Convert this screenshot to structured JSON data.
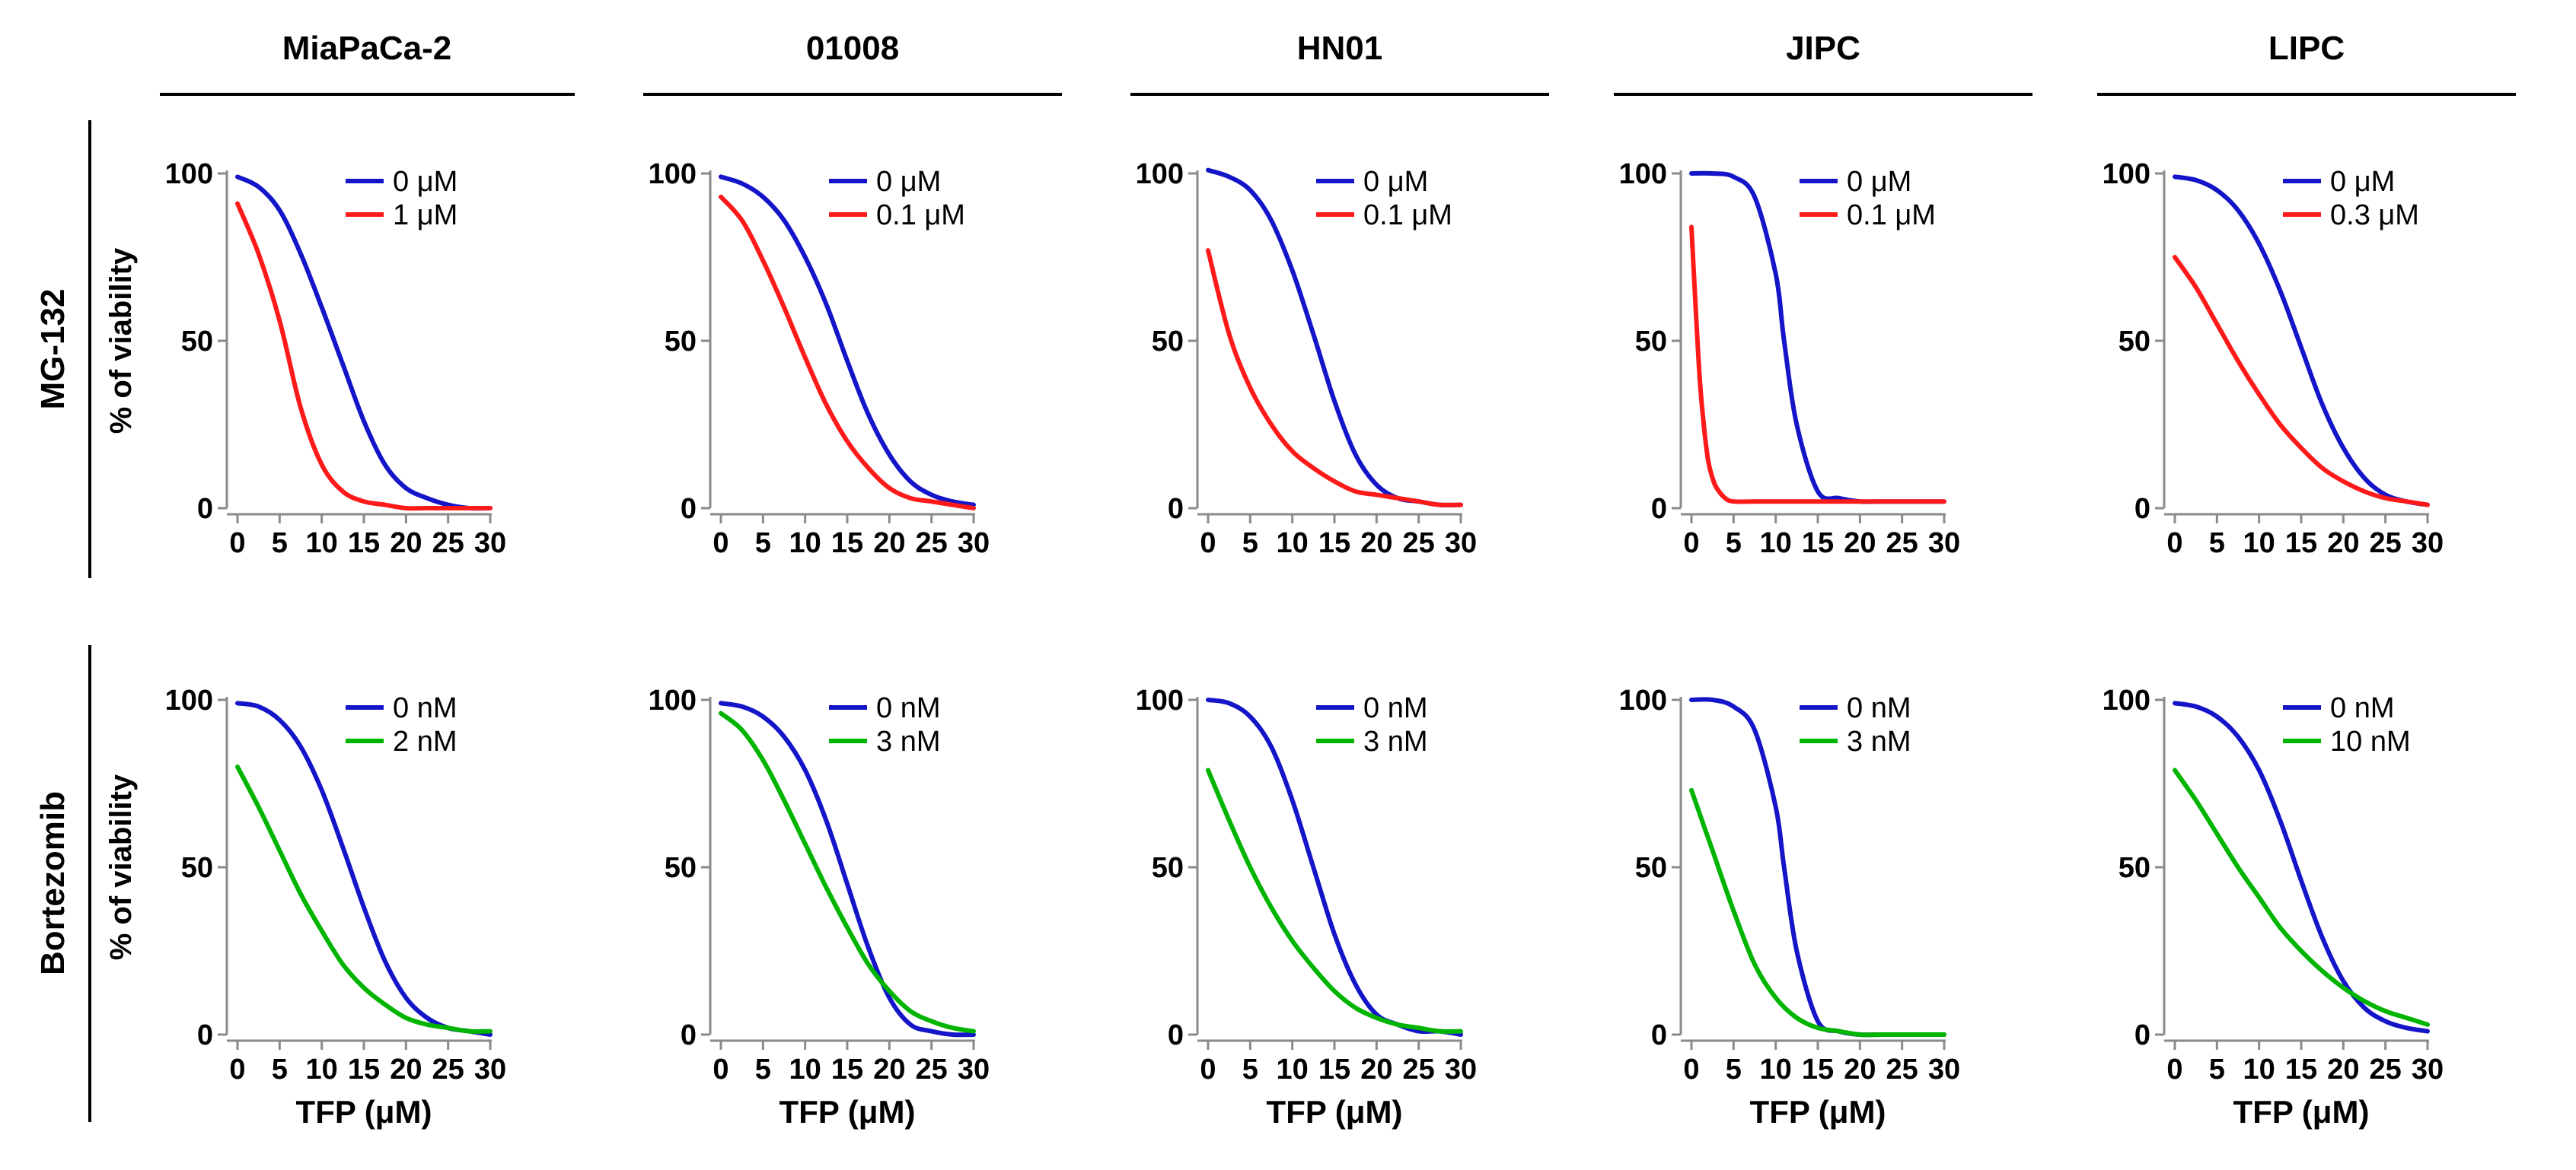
{
  "figure": {
    "columns": [
      "MiaPaCa-2",
      "01008",
      "HN01",
      "JIPC",
      "LIPC"
    ],
    "rows": [
      "MG-132",
      "Bortezomib"
    ],
    "colors": {
      "control": "#1414c8",
      "mg132": "#ff1a1a",
      "bortezomib": "#00b400"
    }
  },
  "chart_data": [
    {
      "type": "line",
      "row": "MG-132",
      "column": "MiaPaCa-2",
      "xlabel": "",
      "ylabel": "% of viability",
      "xlim": [
        0,
        30
      ],
      "ylim": [
        0,
        100
      ],
      "xticks": [
        0,
        5,
        10,
        15,
        20,
        25,
        30
      ],
      "yticks": [
        0,
        50,
        100
      ],
      "series": [
        {
          "name": "0 μM",
          "color": "#1414c8",
          "x": [
            0,
            2.5,
            5,
            7.5,
            10,
            12.5,
            15,
            17.5,
            20,
            22.5,
            25,
            27.5,
            30
          ],
          "y": [
            99,
            96,
            89,
            76,
            60,
            43,
            26,
            13,
            6,
            3,
            1,
            0,
            0
          ]
        },
        {
          "name": "1 μM",
          "color": "#ff1a1a",
          "x": [
            0,
            2.5,
            5,
            7.5,
            10,
            12.5,
            15,
            17.5,
            20,
            22.5,
            25,
            27.5,
            30
          ],
          "y": [
            91,
            76,
            56,
            30,
            13,
            5,
            2,
            1,
            0,
            0,
            0,
            0,
            0
          ]
        }
      ]
    },
    {
      "type": "line",
      "row": "MG-132",
      "column": "01008",
      "xlabel": "",
      "ylabel": "",
      "xlim": [
        0,
        30
      ],
      "ylim": [
        0,
        100
      ],
      "xticks": [
        0,
        5,
        10,
        15,
        20,
        25,
        30
      ],
      "yticks": [
        0,
        50,
        100
      ],
      "series": [
        {
          "name": "0 μM",
          "color": "#1414c8",
          "x": [
            0,
            2.5,
            5,
            7.5,
            10,
            12.5,
            15,
            17.5,
            20,
            22.5,
            25,
            27.5,
            30
          ],
          "y": [
            99,
            97,
            93,
            86,
            75,
            61,
            44,
            28,
            16,
            8,
            4,
            2,
            1
          ]
        },
        {
          "name": "0.1 μM",
          "color": "#ff1a1a",
          "x": [
            0,
            2.5,
            5,
            7.5,
            10,
            12.5,
            15,
            17.5,
            20,
            22.5,
            25,
            27.5,
            30
          ],
          "y": [
            93,
            86,
            74,
            60,
            45,
            31,
            20,
            12,
            6,
            3,
            2,
            1,
            0
          ]
        }
      ]
    },
    {
      "type": "line",
      "row": "MG-132",
      "column": "HN01",
      "xlabel": "",
      "ylabel": "",
      "xlim": [
        0,
        30
      ],
      "ylim": [
        0,
        100
      ],
      "xticks": [
        0,
        5,
        10,
        15,
        20,
        25,
        30
      ],
      "yticks": [
        0,
        50,
        100
      ],
      "series": [
        {
          "name": "0 μM",
          "color": "#1414c8",
          "x": [
            0,
            2.5,
            5,
            7.5,
            10,
            12.5,
            15,
            17.5,
            20,
            22.5,
            25,
            27.5,
            30
          ],
          "y": [
            101,
            99,
            95,
            86,
            71,
            52,
            32,
            16,
            7,
            3,
            2,
            1,
            1
          ]
        },
        {
          "name": "0.1 μM",
          "color": "#ff1a1a",
          "x": [
            0,
            2.5,
            5,
            7.5,
            10,
            12.5,
            15,
            17.5,
            20,
            22.5,
            25,
            27.5,
            30
          ],
          "y": [
            77,
            52,
            36,
            25,
            17,
            12,
            8,
            5,
            4,
            3,
            2,
            1,
            1
          ]
        }
      ]
    },
    {
      "type": "line",
      "row": "MG-132",
      "column": "JIPC",
      "xlabel": "",
      "ylabel": "",
      "xlim": [
        0,
        30
      ],
      "ylim": [
        0,
        100
      ],
      "xticks": [
        0,
        5,
        10,
        15,
        20,
        25,
        30
      ],
      "yticks": [
        0,
        50,
        100
      ],
      "series": [
        {
          "name": "0 μM",
          "color": "#1414c8",
          "x": [
            0,
            2.5,
            5,
            7.5,
            10,
            11,
            12.5,
            15,
            17.5,
            20,
            22.5,
            25,
            27.5,
            30
          ],
          "y": [
            100,
            100,
            99,
            93,
            70,
            50,
            25,
            5,
            3,
            2,
            2,
            2,
            2,
            2
          ]
        },
        {
          "name": "0.1 μM",
          "color": "#ff1a1a",
          "x": [
            0,
            0.5,
            1,
            1.5,
            2,
            2.5,
            3,
            4,
            5,
            7.5,
            10,
            15,
            20,
            25,
            30
          ],
          "y": [
            84,
            60,
            38,
            24,
            14,
            9,
            6,
            3,
            2,
            2,
            2,
            2,
            2,
            2,
            2
          ]
        }
      ]
    },
    {
      "type": "line",
      "row": "MG-132",
      "column": "LIPC",
      "xlabel": "",
      "ylabel": "",
      "xlim": [
        0,
        30
      ],
      "ylim": [
        0,
        100
      ],
      "xticks": [
        0,
        5,
        10,
        15,
        20,
        25,
        30
      ],
      "yticks": [
        0,
        50,
        100
      ],
      "series": [
        {
          "name": "0 μM",
          "color": "#1414c8",
          "x": [
            0,
            2.5,
            5,
            7.5,
            10,
            12.5,
            15,
            17.5,
            20,
            22.5,
            25,
            27.5,
            30
          ],
          "y": [
            99,
            98,
            95,
            89,
            79,
            65,
            48,
            31,
            18,
            9,
            4,
            2,
            1
          ]
        },
        {
          "name": "0.3 μM",
          "color": "#ff1a1a",
          "x": [
            0,
            2.5,
            5,
            7.5,
            10,
            12.5,
            15,
            17.5,
            20,
            22.5,
            25,
            27.5,
            30
          ],
          "y": [
            75,
            66,
            55,
            44,
            34,
            25,
            18,
            12,
            8,
            5,
            3,
            2,
            1
          ]
        }
      ]
    },
    {
      "type": "line",
      "row": "Bortezomib",
      "column": "MiaPaCa-2",
      "xlabel": "TFP (μM)",
      "ylabel": "% of viability",
      "xlim": [
        0,
        30
      ],
      "ylim": [
        0,
        100
      ],
      "xticks": [
        0,
        5,
        10,
        15,
        20,
        25,
        30
      ],
      "yticks": [
        0,
        50,
        100
      ],
      "series": [
        {
          "name": "0 nM",
          "color": "#1414c8",
          "x": [
            0,
            2.5,
            5,
            7.5,
            10,
            12.5,
            15,
            17.5,
            20,
            22.5,
            25,
            27.5,
            30
          ],
          "y": [
            99,
            98,
            94,
            86,
            73,
            56,
            38,
            22,
            11,
            5,
            2,
            1,
            0
          ]
        },
        {
          "name": "2 nM",
          "color": "#00b400",
          "x": [
            0,
            2.5,
            5,
            7.5,
            10,
            12.5,
            15,
            17.5,
            20,
            22.5,
            25,
            27.5,
            30
          ],
          "y": [
            80,
            68,
            55,
            42,
            31,
            21,
            14,
            9,
            5,
            3,
            2,
            1,
            1
          ]
        }
      ]
    },
    {
      "type": "line",
      "row": "Bortezomib",
      "column": "01008",
      "xlabel": "TFP (μM)",
      "ylabel": "",
      "xlim": [
        0,
        30
      ],
      "ylim": [
        0,
        100
      ],
      "xticks": [
        0,
        5,
        10,
        15,
        20,
        25,
        30
      ],
      "yticks": [
        0,
        50,
        100
      ],
      "series": [
        {
          "name": "0 nM",
          "color": "#1414c8",
          "x": [
            0,
            2.5,
            5,
            7.5,
            10,
            12.5,
            15,
            17.5,
            20,
            22.5,
            25,
            27.5,
            30
          ],
          "y": [
            99,
            98,
            95,
            89,
            79,
            64,
            45,
            26,
            11,
            3,
            1,
            0,
            0
          ]
        },
        {
          "name": "3 nM",
          "color": "#00b400",
          "x": [
            0,
            2.5,
            5,
            7.5,
            10,
            12.5,
            15,
            17.5,
            20,
            22.5,
            25,
            27.5,
            30
          ],
          "y": [
            96,
            91,
            82,
            70,
            57,
            44,
            32,
            21,
            13,
            7,
            4,
            2,
            1
          ]
        }
      ]
    },
    {
      "type": "line",
      "row": "Bortezomib",
      "column": "HN01",
      "xlabel": "TFP (μM)",
      "ylabel": "",
      "xlim": [
        0,
        30
      ],
      "ylim": [
        0,
        100
      ],
      "xticks": [
        0,
        5,
        10,
        15,
        20,
        25,
        30
      ],
      "yticks": [
        0,
        50,
        100
      ],
      "series": [
        {
          "name": "0 nM",
          "color": "#1414c8",
          "x": [
            0,
            2.5,
            5,
            7.5,
            10,
            12.5,
            15,
            17.5,
            20,
            22.5,
            25,
            27.5,
            30
          ],
          "y": [
            100,
            99,
            95,
            86,
            70,
            50,
            30,
            15,
            6,
            3,
            1,
            1,
            0
          ]
        },
        {
          "name": "3 nM",
          "color": "#00b400",
          "x": [
            0,
            2.5,
            5,
            7.5,
            10,
            12.5,
            15,
            17.5,
            20,
            22.5,
            25,
            27.5,
            30
          ],
          "y": [
            79,
            64,
            50,
            38,
            28,
            20,
            13,
            8,
            5,
            3,
            2,
            1,
            1
          ]
        }
      ]
    },
    {
      "type": "line",
      "row": "Bortezomib",
      "column": "JIPC",
      "xlabel": "TFP (μM)",
      "ylabel": "",
      "xlim": [
        0,
        30
      ],
      "ylim": [
        0,
        100
      ],
      "xticks": [
        0,
        5,
        10,
        15,
        20,
        25,
        30
      ],
      "yticks": [
        0,
        50,
        100
      ],
      "series": [
        {
          "name": "0 nM",
          "color": "#1414c8",
          "x": [
            0,
            2.5,
            5,
            7.5,
            10,
            11,
            12.5,
            15,
            17.5,
            20,
            22.5,
            25,
            27.5,
            30
          ],
          "y": [
            100,
            100,
            98,
            91,
            68,
            50,
            25,
            4,
            1,
            0,
            0,
            0,
            0,
            0
          ]
        },
        {
          "name": "3 nM",
          "color": "#00b400",
          "x": [
            0,
            2.5,
            5,
            7.5,
            10,
            12.5,
            15,
            17.5,
            20,
            22.5,
            25,
            27.5,
            30
          ],
          "y": [
            73,
            55,
            37,
            21,
            11,
            5,
            2,
            1,
            0,
            0,
            0,
            0,
            0
          ]
        }
      ]
    },
    {
      "type": "line",
      "row": "Bortezomib",
      "column": "LIPC",
      "xlabel": "TFP (μM)",
      "ylabel": "",
      "xlim": [
        0,
        30
      ],
      "ylim": [
        0,
        100
      ],
      "xticks": [
        0,
        5,
        10,
        15,
        20,
        25,
        30
      ],
      "yticks": [
        0,
        50,
        100
      ],
      "series": [
        {
          "name": "0 nM",
          "color": "#1414c8",
          "x": [
            0,
            2.5,
            5,
            7.5,
            10,
            12.5,
            15,
            17.5,
            20,
            22.5,
            25,
            27.5,
            30
          ],
          "y": [
            99,
            98,
            95,
            89,
            79,
            64,
            46,
            29,
            16,
            8,
            4,
            2,
            1
          ]
        },
        {
          "name": "10 nM",
          "color": "#00b400",
          "x": [
            0,
            2.5,
            5,
            7.5,
            10,
            12.5,
            15,
            17.5,
            20,
            22.5,
            25,
            27.5,
            30
          ],
          "y": [
            79,
            70,
            60,
            50,
            41,
            32,
            25,
            19,
            14,
            10,
            7,
            5,
            3
          ]
        }
      ]
    }
  ]
}
